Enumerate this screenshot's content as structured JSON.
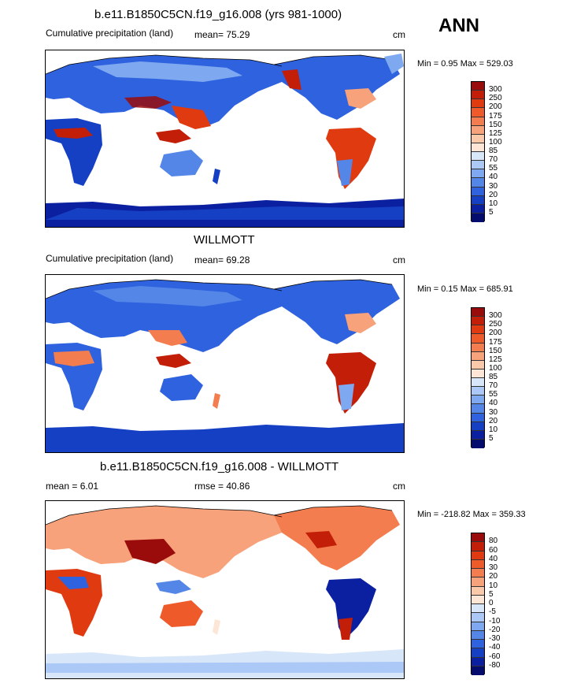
{
  "annual_label": "ANN",
  "panels": [
    {
      "title": "b.e11.B1850C5CN.f19_g16.008 (yrs 981-1000)",
      "left_label": "Cumulative precipitation (land)",
      "mean_label": "mean=  75.29",
      "units": "cm",
      "minmax": "Min =   0.95 Max = 529.03",
      "colorbar": {
        "labels": [
          "300",
          "250",
          "200",
          "175",
          "150",
          "125",
          "100",
          "85",
          "70",
          "55",
          "40",
          "30",
          "20",
          "10",
          "5"
        ],
        "colors": [
          "#9a0c0c",
          "#c21e08",
          "#e03a10",
          "#ee5a2a",
          "#f37d4f",
          "#f7a27a",
          "#fac9aa",
          "#fde6d6",
          "#d8e6fa",
          "#abc8f6",
          "#7ea8f0",
          "#5486e8",
          "#2f62de",
          "#1640c4",
          "#0a20a0",
          "#040c6e"
        ]
      }
    },
    {
      "title": "WILLMOTT",
      "left_label": "Cumulative precipitation (land)",
      "mean_label": "mean=  69.28",
      "units": "cm",
      "minmax": "Min =   0.15 Max = 685.91",
      "colorbar": {
        "labels": [
          "300",
          "250",
          "200",
          "175",
          "150",
          "125",
          "100",
          "85",
          "70",
          "55",
          "40",
          "30",
          "20",
          "10",
          "5"
        ],
        "colors": [
          "#9a0c0c",
          "#c21e08",
          "#e03a10",
          "#ee5a2a",
          "#f37d4f",
          "#f7a27a",
          "#fac9aa",
          "#fde6d6",
          "#d8e6fa",
          "#abc8f6",
          "#7ea8f0",
          "#5486e8",
          "#2f62de",
          "#1640c4",
          "#0a20a0",
          "#040c6e"
        ]
      }
    },
    {
      "title": "b.e11.B1850C5CN.f19_g16.008 - WILLMOTT",
      "left_label": "mean =   6.01",
      "mean_label": "rmse =  40.86",
      "units": "cm",
      "minmax": "Min = -218.82 Max = 359.33",
      "colorbar": {
        "labels": [
          "80",
          "60",
          "40",
          "30",
          "20",
          "10",
          "5",
          "0",
          "-5",
          "-10",
          "-20",
          "-30",
          "-40",
          "-60",
          "-80"
        ],
        "colors": [
          "#9a0c0c",
          "#c21e08",
          "#e03a10",
          "#ee5a2a",
          "#f37d4f",
          "#f7a27a",
          "#fac9aa",
          "#fde6d6",
          "#d8e6fa",
          "#abc8f6",
          "#7ea8f0",
          "#5486e8",
          "#2f62de",
          "#1640c4",
          "#0a20a0",
          "#040c6e"
        ]
      }
    }
  ]
}
